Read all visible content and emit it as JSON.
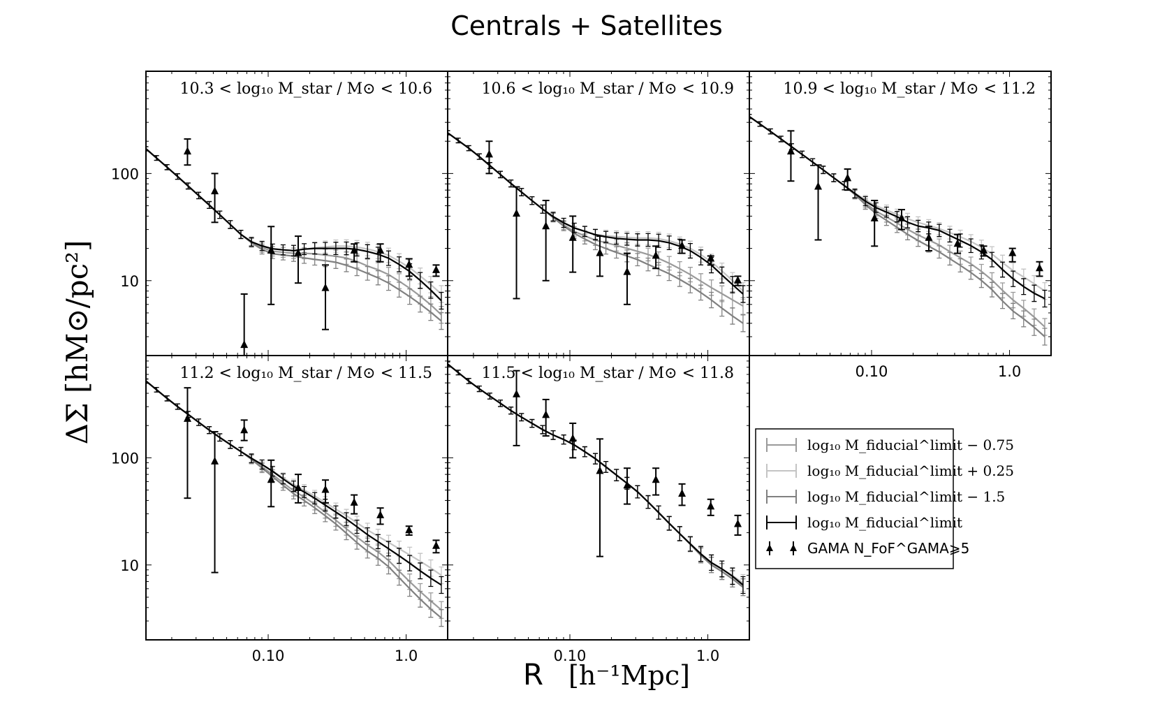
{
  "figure": {
    "title": "Centrals + Satellites",
    "ylabel": "ΔΣ [hM⊙/pc²]",
    "xlabel_r": "R",
    "xlabel_units": "[h⁻¹Mpc]"
  },
  "legend": {
    "entries": [
      {
        "label": "log₁₀ M_fiducial^limit − 0.75",
        "color": "#9a9a9a"
      },
      {
        "label": "log₁₀ M_fiducial^limit + 0.25",
        "color": "#c4c4c4"
      },
      {
        "label": "log₁₀ M_fiducial^limit − 1.5",
        "color": "#808080"
      },
      {
        "label": "log₁₀ M_fiducial^limit",
        "color": "#000000"
      },
      {
        "label": "GAMA N_FoF^GAMA⩾5",
        "color": "#000000"
      }
    ]
  },
  "chart_data": {
    "type": "line",
    "xscale": "log",
    "yscale": "log",
    "xlim": [
      0.013,
      2.0
    ],
    "ylim": [
      2.0,
      900
    ],
    "xticks": [
      {
        "v": 0.1,
        "label": "0.10"
      },
      {
        "v": 1.0,
        "label": "1.0"
      }
    ],
    "yticks": [
      {
        "v": 10,
        "label": "10"
      },
      {
        "v": 100,
        "label": "100"
      }
    ],
    "series_names": [
      "log10 M_fiducial^limit - 0.75",
      "log10 M_fiducial^limit + 0.25",
      "log10 M_fiducial^limit - 1.5",
      "log10 M_fiducial^limit",
      "GAMA N_FoF^GAMA >= 5"
    ],
    "panels": [
      {
        "title": "10.3 < log₁₀ M_star / M⊙ < 10.6",
        "models": {
          "fiducial": {
            "x": [
              0.013,
              0.02,
              0.04,
              0.07,
              0.1,
              0.15,
              0.2,
              0.3,
              0.4,
              0.5,
              0.7,
              1.0,
              1.4,
              1.8
            ],
            "y": [
              170,
              105,
              47,
              24,
              20,
              19,
              20,
              20,
              20,
              19,
              17,
              13,
              9,
              6.5
            ]
          },
          "minus075": {
            "x": [
              0.013,
              0.02,
              0.04,
              0.07,
              0.1,
              0.15,
              0.2,
              0.3,
              0.4,
              0.5,
              0.7,
              1.0,
              1.4,
              1.8
            ],
            "y": [
              170,
              105,
              47,
              24,
              19,
              18,
              18,
              17,
              16,
              14,
              12,
              9,
              6.5,
              4.8
            ]
          },
          "plus025": {
            "x": [
              0.013,
              0.02,
              0.04,
              0.07,
              0.1,
              0.15,
              0.2,
              0.3,
              0.4,
              0.5,
              0.7,
              1.0,
              1.4,
              1.8
            ],
            "y": [
              170,
              105,
              47,
              24,
              20,
              19,
              20,
              21,
              21,
              20,
              18,
              14,
              10,
              7.5
            ]
          },
          "minus15": {
            "x": [
              0.013,
              0.02,
              0.04,
              0.07,
              0.1,
              0.15,
              0.2,
              0.3,
              0.4,
              0.5,
              0.7,
              1.0,
              1.4,
              1.8
            ],
            "y": [
              170,
              105,
              47,
              24,
              18,
              17,
              16,
              15,
              13.5,
              12,
              10,
              7.5,
              5.5,
              4.2
            ]
          }
        },
        "gama": {
          "x": [
            0.026,
            0.041,
            0.067,
            0.105,
            0.165,
            0.26,
            0.42,
            0.65,
            1.05,
            1.65
          ],
          "y": [
            160,
            68,
            2.5,
            19,
            18,
            8.5,
            19,
            19,
            14,
            12.5
          ],
          "err_low": [
            120,
            35,
            0.5,
            6,
            9.5,
            3.5,
            15,
            15,
            11,
            11
          ],
          "err_high": [
            210,
            100,
            7.5,
            32,
            26,
            14,
            22,
            22,
            16,
            14
          ]
        }
      },
      {
        "title": "10.6 < log₁₀ M_star / M⊙ < 10.9",
        "models": {
          "fiducial": {
            "x": [
              0.013,
              0.02,
              0.04,
              0.07,
              0.1,
              0.15,
              0.2,
              0.3,
              0.4,
              0.5,
              0.7,
              1.0,
              1.4,
              1.8
            ],
            "y": [
              240,
              160,
              75,
              42,
              32,
              27,
              25,
              24,
              24,
              23,
              20,
              15,
              10,
              7.5
            ]
          },
          "minus075": {
            "x": [
              0.013,
              0.02,
              0.04,
              0.07,
              0.1,
              0.15,
              0.2,
              0.3,
              0.4,
              0.5,
              0.7,
              1.0,
              1.4,
              1.8
            ],
            "y": [
              240,
              160,
              75,
              42,
              30,
              24,
              22,
              19,
              17,
              15,
              12,
              9,
              7,
              5.8
            ]
          },
          "plus025": {
            "x": [
              0.013,
              0.02,
              0.04,
              0.07,
              0.1,
              0.15,
              0.2,
              0.3,
              0.4,
              0.5,
              0.7,
              1.0,
              1.4,
              1.8
            ],
            "y": [
              240,
              160,
              75,
              42,
              32,
              27,
              26,
              25,
              25,
              24,
              21,
              16,
              11,
              8
            ]
          },
          "minus15": {
            "x": [
              0.013,
              0.02,
              0.04,
              0.07,
              0.1,
              0.15,
              0.2,
              0.3,
              0.4,
              0.5,
              0.7,
              1.0,
              1.4,
              1.8
            ],
            "y": [
              240,
              160,
              75,
              42,
              29,
              22,
              19,
              16,
              13.5,
              12,
              9.5,
              7,
              5,
              4
            ]
          }
        },
        "gama": {
          "x": [
            0.026,
            0.041,
            0.067,
            0.105,
            0.165,
            0.26,
            0.42,
            0.65,
            1.05,
            1.65
          ],
          "y": [
            150,
            42,
            32,
            25,
            18,
            12,
            17,
            21,
            16,
            10
          ],
          "err_low": [
            100,
            6.8,
            10,
            12,
            11,
            6,
            13,
            18,
            14,
            9
          ],
          "err_high": [
            200,
            75,
            56,
            40,
            26,
            18,
            21,
            24,
            17,
            11
          ]
        }
      },
      {
        "title": "10.9 < log₁₀ M_star / M⊙ < 11.2",
        "models": {
          "fiducial": {
            "x": [
              0.013,
              0.02,
              0.04,
              0.07,
              0.1,
              0.15,
              0.2,
              0.3,
              0.4,
              0.5,
              0.7,
              1.0,
              1.4,
              1.8
            ],
            "y": [
              340,
              230,
              120,
              70,
              50,
              40,
              33,
              30,
              25,
              22,
              17,
              11,
              8,
              6.8
            ]
          },
          "minus075": {
            "x": [
              0.013,
              0.02,
              0.04,
              0.07,
              0.1,
              0.15,
              0.2,
              0.3,
              0.4,
              0.5,
              0.7,
              1.0,
              1.4,
              1.8
            ],
            "y": [
              340,
              230,
              120,
              70,
              47,
              35,
              28,
              22,
              17.5,
              15,
              11,
              7,
              5,
              3.7
            ]
          },
          "plus025": {
            "x": [
              0.013,
              0.02,
              0.04,
              0.07,
              0.1,
              0.15,
              0.2,
              0.3,
              0.4,
              0.5,
              0.7,
              1.0,
              1.4,
              1.8
            ],
            "y": [
              340,
              230,
              120,
              70,
              52,
              42,
              36,
              31,
              27,
              24,
              19,
              13,
              10,
              8
            ]
          },
          "minus15": {
            "x": [
              0.013,
              0.02,
              0.04,
              0.07,
              0.1,
              0.15,
              0.2,
              0.3,
              0.4,
              0.5,
              0.7,
              1.0,
              1.4,
              1.8
            ],
            "y": [
              340,
              230,
              120,
              70,
              45,
              32,
              25,
              19,
              15,
              12.5,
              9,
              5.5,
              4,
              3
            ]
          }
        },
        "gama": {
          "x": [
            0.026,
            0.041,
            0.067,
            0.105,
            0.165,
            0.26,
            0.42,
            0.65,
            1.05,
            1.65
          ],
          "y": [
            160,
            75,
            90,
            38,
            38,
            25,
            22,
            19,
            18,
            13
          ],
          "err_low": [
            85,
            24,
            70,
            21,
            30,
            19,
            18,
            17,
            15,
            11
          ],
          "err_high": [
            250,
            120,
            110,
            56,
            46,
            32,
            27,
            21,
            20,
            15
          ]
        }
      },
      {
        "title": "11.2 < log₁₀ M_star / M⊙ < 11.5",
        "models": {
          "fiducial": {
            "x": [
              0.013,
              0.02,
              0.04,
              0.07,
              0.1,
              0.15,
              0.2,
              0.3,
              0.4,
              0.5,
              0.7,
              1.0,
              1.4,
              1.8
            ],
            "y": [
              520,
              330,
              170,
              105,
              80,
              55,
              45,
              32,
              25,
              20,
              15,
              11,
              8,
              6.5
            ]
          },
          "minus075": {
            "x": [
              0.013,
              0.02,
              0.04,
              0.07,
              0.1,
              0.15,
              0.2,
              0.3,
              0.4,
              0.5,
              0.7,
              1.0,
              1.4,
              1.8
            ],
            "y": [
              520,
              330,
              170,
              105,
              75,
              50,
              40,
              27,
              20,
              16,
              12,
              7.5,
              5,
              3.8
            ]
          },
          "plus025": {
            "x": [
              0.013,
              0.02,
              0.04,
              0.07,
              0.1,
              0.15,
              0.2,
              0.3,
              0.4,
              0.5,
              0.7,
              1.0,
              1.4,
              1.8
            ],
            "y": [
              520,
              330,
              170,
              105,
              80,
              57,
              47,
              34,
              27,
              22,
              17,
              13,
              10,
              8
            ]
          },
          "minus15": {
            "x": [
              0.013,
              0.02,
              0.04,
              0.07,
              0.1,
              0.15,
              0.2,
              0.3,
              0.4,
              0.5,
              0.7,
              1.0,
              1.4,
              1.8
            ],
            "y": [
              520,
              330,
              170,
              105,
              72,
              47,
              37,
              25,
              18,
              14,
              10.5,
              6.5,
              4.2,
              3.2
            ]
          }
        },
        "gama": {
          "x": [
            0.026,
            0.041,
            0.067,
            0.105,
            0.165,
            0.26,
            0.42,
            0.65,
            1.05,
            1.65
          ],
          "y": [
            230,
            92,
            180,
            62,
            52,
            50,
            38,
            29,
            21,
            15
          ],
          "err_low": [
            42,
            8.5,
            145,
            35,
            38,
            38,
            30,
            24,
            19,
            13
          ],
          "err_high": [
            450,
            175,
            225,
            95,
            70,
            62,
            45,
            34,
            23,
            17
          ]
        }
      },
      {
        "title": "11.5 < log₁₀ M_star / M⊙ < 11.8",
        "models": {
          "fiducial": {
            "x": [
              0.013,
              0.02,
              0.04,
              0.07,
              0.1,
              0.15,
              0.2,
              0.3,
              0.4,
              0.5,
              0.7,
              1.0,
              1.4,
              1.8
            ],
            "y": [
              750,
              480,
              260,
              170,
              140,
              100,
              75,
              50,
              35,
              26,
              17,
              11,
              8.5,
              6.5
            ]
          },
          "minus075": {
            "x": [
              0.013,
              0.02,
              0.04,
              0.07,
              0.1,
              0.15,
              0.2,
              0.3,
              0.4,
              0.5,
              0.7,
              1.0,
              1.4,
              1.8
            ],
            "y": [
              750,
              480,
              260,
              170,
              140,
              100,
              75,
              50,
              35,
              26,
              17,
              10.5,
              8,
              6.2
            ]
          },
          "plus025": {
            "x": [
              0.013,
              0.02,
              0.04,
              0.07,
              0.1,
              0.15,
              0.2,
              0.3,
              0.4,
              0.5,
              0.7,
              1.0,
              1.4,
              1.8
            ],
            "y": [
              750,
              480,
              260,
              170,
              140,
              100,
              75,
              50,
              35,
              26,
              17,
              11,
              8.5,
              6.8
            ]
          },
          "minus15": {
            "x": [
              0.013,
              0.02,
              0.04,
              0.07,
              0.1,
              0.15,
              0.2,
              0.3,
              0.4,
              0.5,
              0.7,
              1.0,
              1.4,
              1.8
            ],
            "y": [
              750,
              480,
              260,
              170,
              140,
              100,
              75,
              50,
              35,
              26,
              17,
              10.5,
              8,
              6.2
            ]
          }
        },
        "gama": {
          "x": [
            0.041,
            0.067,
            0.105,
            0.165,
            0.26,
            0.42,
            0.65,
            1.05,
            1.65
          ],
          "y": [
            390,
            250,
            150,
            75,
            55,
            62,
            46,
            35,
            24
          ],
          "err_low": [
            130,
            160,
            100,
            12,
            37,
            45,
            36,
            29,
            19
          ],
          "err_high": [
            650,
            350,
            210,
            150,
            80,
            80,
            57,
            41,
            29
          ]
        }
      }
    ]
  }
}
